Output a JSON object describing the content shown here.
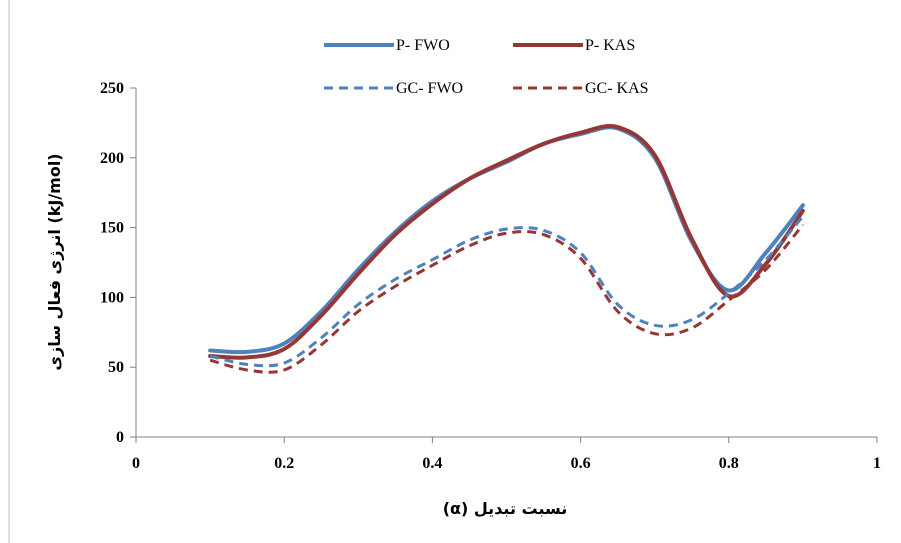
{
  "chart_data": {
    "type": "line",
    "title": "",
    "xlabel": "نسبت تبدیل (α)",
    "ylabel": "(kJ/mol) انرژی فعال سازی",
    "xlim": [
      0,
      1
    ],
    "ylim": [
      0,
      250
    ],
    "x_ticks": [
      "0",
      "0.2",
      "0.4",
      "0.6",
      "0.8",
      "1"
    ],
    "y_ticks": [
      "0",
      "50",
      "100",
      "150",
      "200",
      "250"
    ],
    "grid": false,
    "legend_position": "top",
    "series": [
      {
        "name": "P- FWO",
        "color": "#4f81bd",
        "dash": "solid",
        "x": [
          0.1,
          0.15,
          0.2,
          0.25,
          0.3,
          0.35,
          0.4,
          0.45,
          0.5,
          0.55,
          0.6,
          0.65,
          0.7,
          0.75,
          0.8,
          0.85,
          0.9
        ],
        "y": [
          62,
          61,
          67,
          90,
          120,
          147,
          169,
          185,
          197,
          210,
          217,
          221,
          200,
          140,
          105,
          132,
          166
        ]
      },
      {
        "name": "P- KAS",
        "color": "#953735",
        "dash": "solid",
        "x": [
          0.1,
          0.15,
          0.2,
          0.25,
          0.3,
          0.35,
          0.4,
          0.45,
          0.5,
          0.55,
          0.6,
          0.65,
          0.7,
          0.75,
          0.8,
          0.85,
          0.9
        ],
        "y": [
          58,
          57,
          63,
          87,
          117,
          145,
          167,
          185,
          198,
          210,
          218,
          222,
          202,
          142,
          101,
          124,
          162
        ]
      },
      {
        "name": "GC- FWO",
        "color": "#4f81bd",
        "dash": "dashed",
        "x": [
          0.1,
          0.15,
          0.2,
          0.25,
          0.3,
          0.35,
          0.4,
          0.45,
          0.5,
          0.55,
          0.6,
          0.65,
          0.7,
          0.75,
          0.8,
          0.85,
          0.9
        ],
        "y": [
          58,
          52,
          53,
          71,
          95,
          113,
          127,
          141,
          149,
          148,
          132,
          95,
          80,
          84,
          103,
          127,
          158
        ]
      },
      {
        "name": "GC- KAS",
        "color": "#953735",
        "dash": "dashed",
        "x": [
          0.1,
          0.15,
          0.2,
          0.25,
          0.3,
          0.35,
          0.4,
          0.45,
          0.5,
          0.55,
          0.6,
          0.65,
          0.7,
          0.75,
          0.8,
          0.85,
          0.9
        ],
        "y": [
          55,
          48,
          48,
          66,
          90,
          108,
          123,
          137,
          146,
          145,
          128,
          90,
          74,
          78,
          98,
          120,
          152
        ]
      }
    ]
  }
}
